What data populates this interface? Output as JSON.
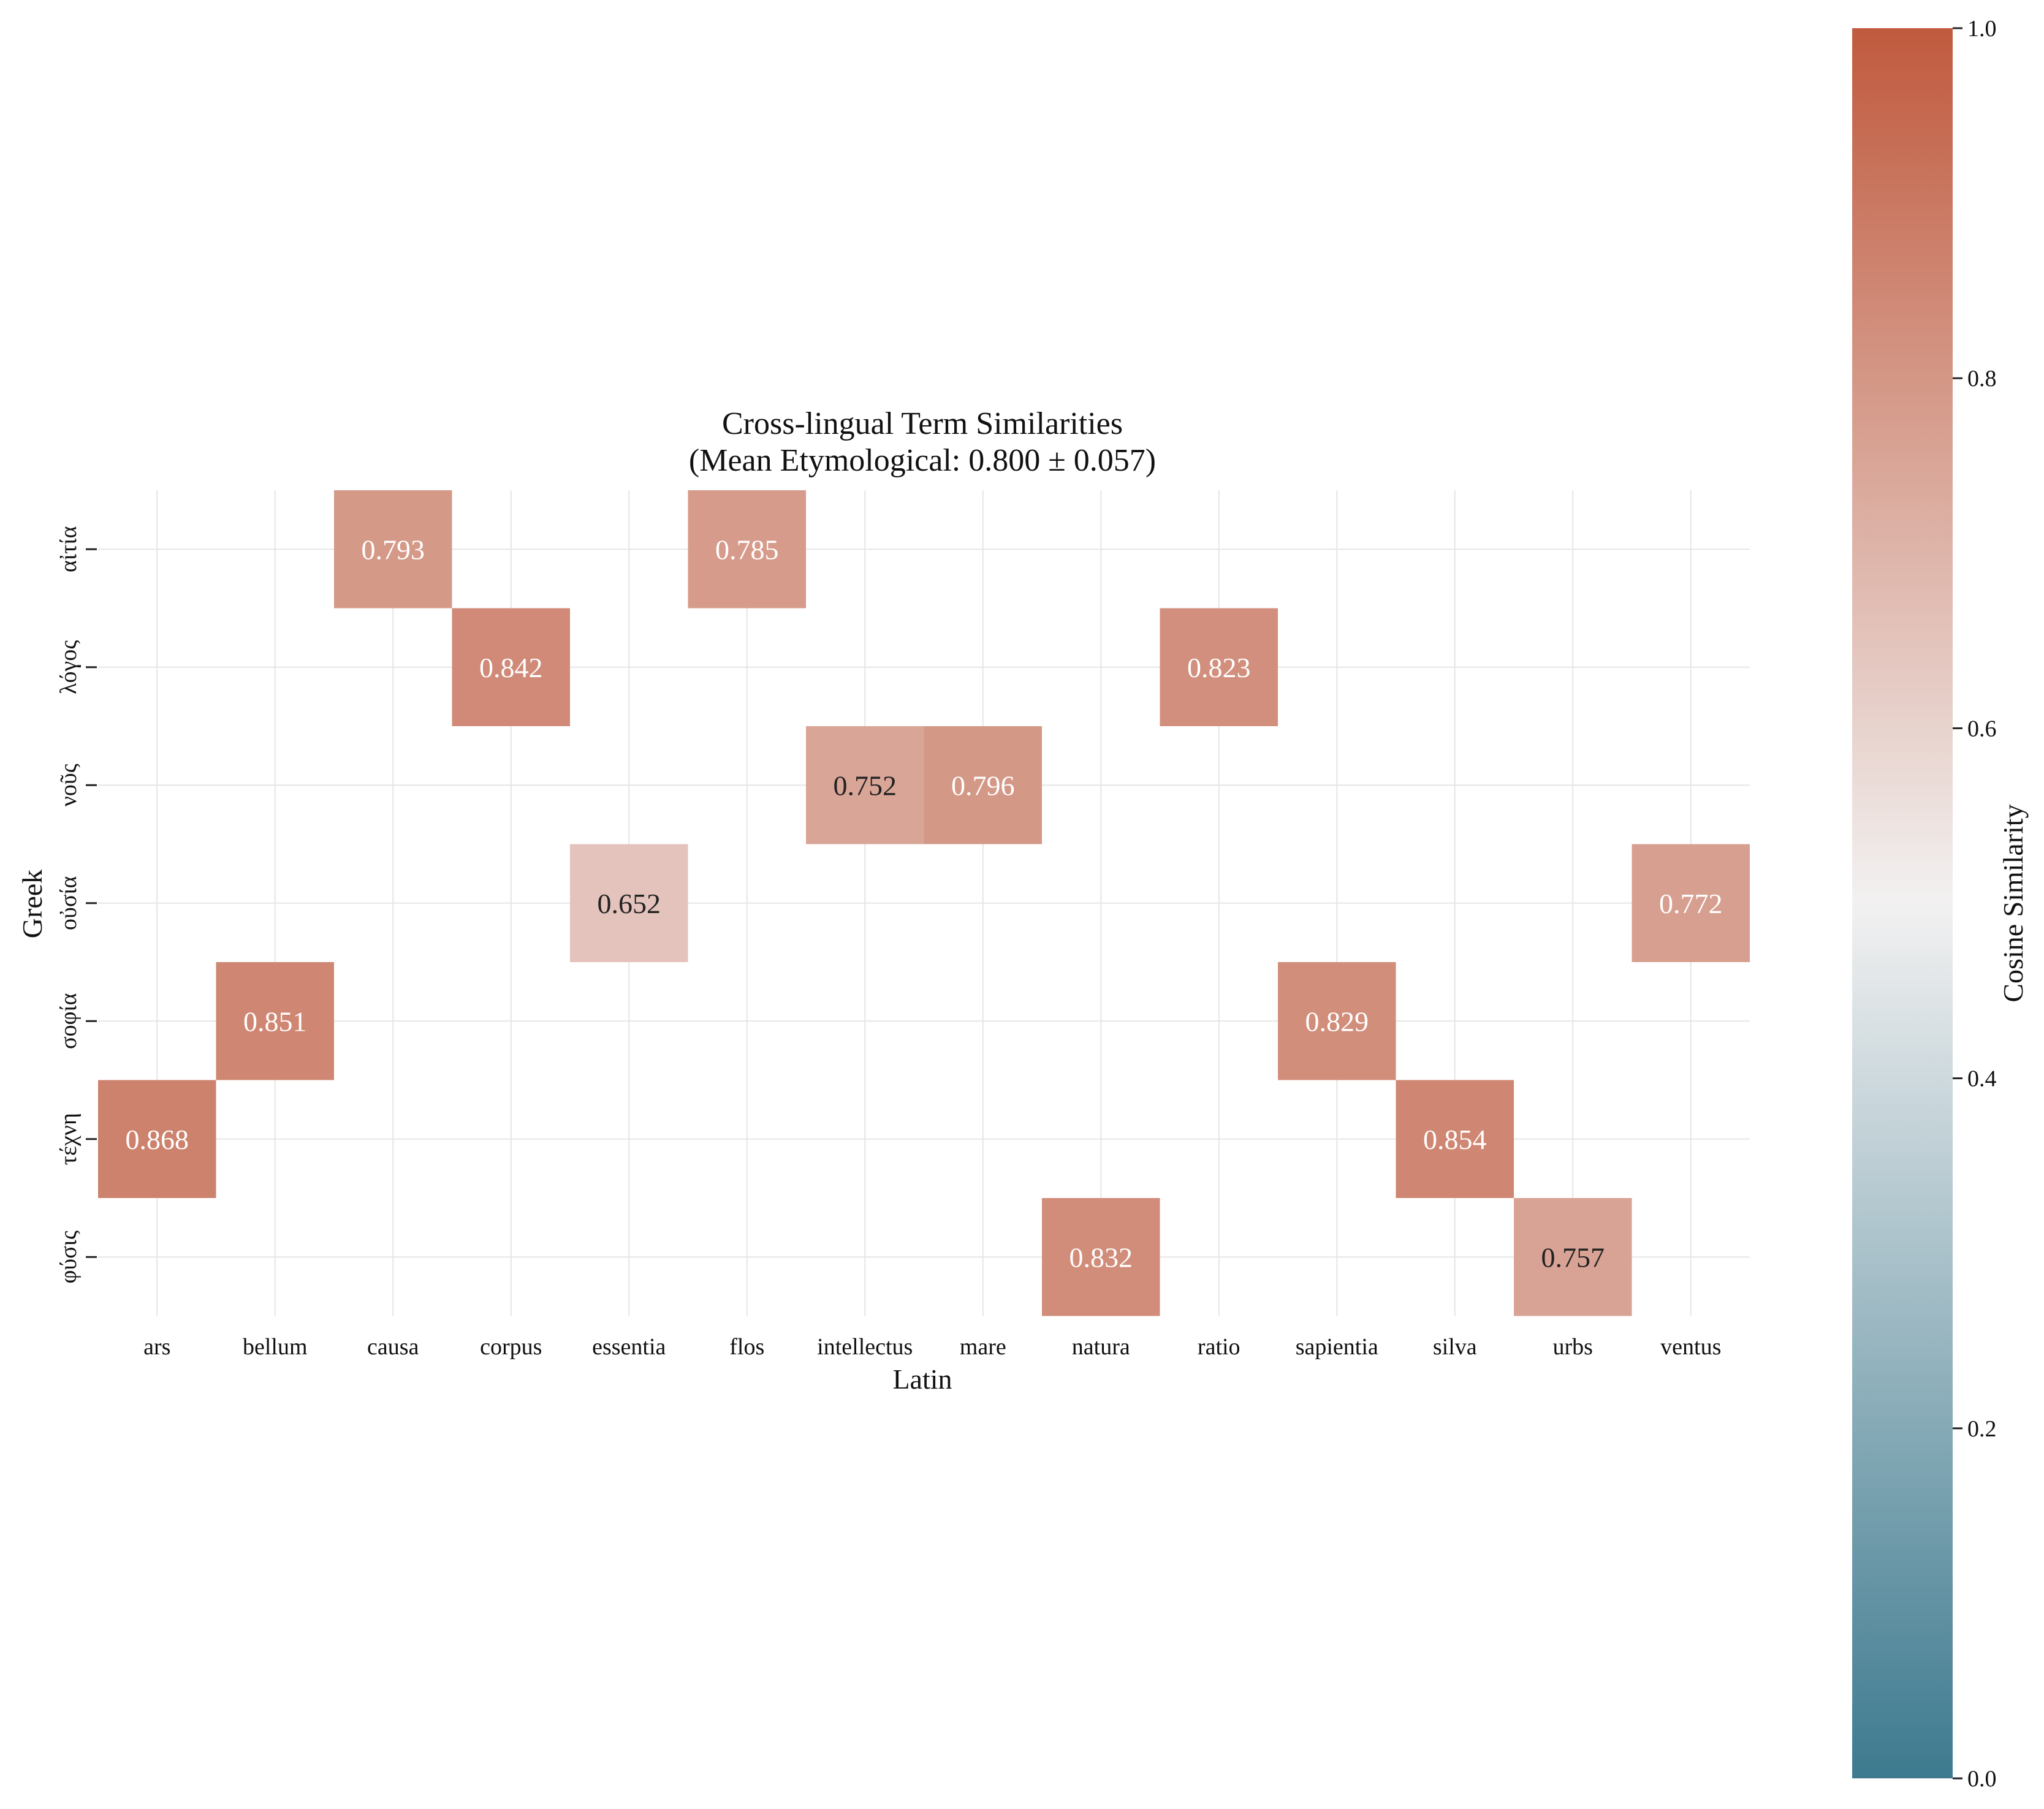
{
  "chart_data": {
    "type": "heatmap",
    "title": "Cross-lingual Term Similarities",
    "subtitle": "(Mean Etymological: 0.800 ± 0.057)",
    "xlabel": "Latin",
    "ylabel": "Greek",
    "x_categories": [
      "ars",
      "bellum",
      "causa",
      "corpus",
      "essentia",
      "flos",
      "intellectus",
      "mare",
      "natura",
      "ratio",
      "sapientia",
      "silva",
      "urbs",
      "ventus"
    ],
    "y_categories": [
      "αἰτία",
      "λόγος",
      "νοῦς",
      "οὐσία",
      "σοφία",
      "τέχνη",
      "φύσις"
    ],
    "cells": [
      {
        "row": "αἰτία",
        "col": "causa",
        "value": 0.793
      },
      {
        "row": "αἰτία",
        "col": "flos",
        "value": 0.785
      },
      {
        "row": "λόγος",
        "col": "corpus",
        "value": 0.842
      },
      {
        "row": "λόγος",
        "col": "ratio",
        "value": 0.823
      },
      {
        "row": "νοῦς",
        "col": "intellectus",
        "value": 0.752
      },
      {
        "row": "νοῦς",
        "col": "mare",
        "value": 0.796
      },
      {
        "row": "οὐσία",
        "col": "essentia",
        "value": 0.652
      },
      {
        "row": "οὐσία",
        "col": "ventus",
        "value": 0.772
      },
      {
        "row": "σοφία",
        "col": "bellum",
        "value": 0.851
      },
      {
        "row": "σοφία",
        "col": "sapientia",
        "value": 0.829
      },
      {
        "row": "τέχνη",
        "col": "ars",
        "value": 0.868
      },
      {
        "row": "τέχνη",
        "col": "silva",
        "value": 0.854
      },
      {
        "row": "φύσις",
        "col": "natura",
        "value": 0.832
      },
      {
        "row": "φύσις",
        "col": "urbs",
        "value": 0.757
      }
    ],
    "colorbar": {
      "label": "Cosine Similarity",
      "range": [
        0.0,
        1.0
      ],
      "ticks": [
        "0.0",
        "0.2",
        "0.4",
        "0.6",
        "0.8",
        "1.0"
      ],
      "colormap": [
        "#3d7a8f",
        "#f2f1f1",
        "#c05a3e"
      ]
    },
    "grid": true
  }
}
